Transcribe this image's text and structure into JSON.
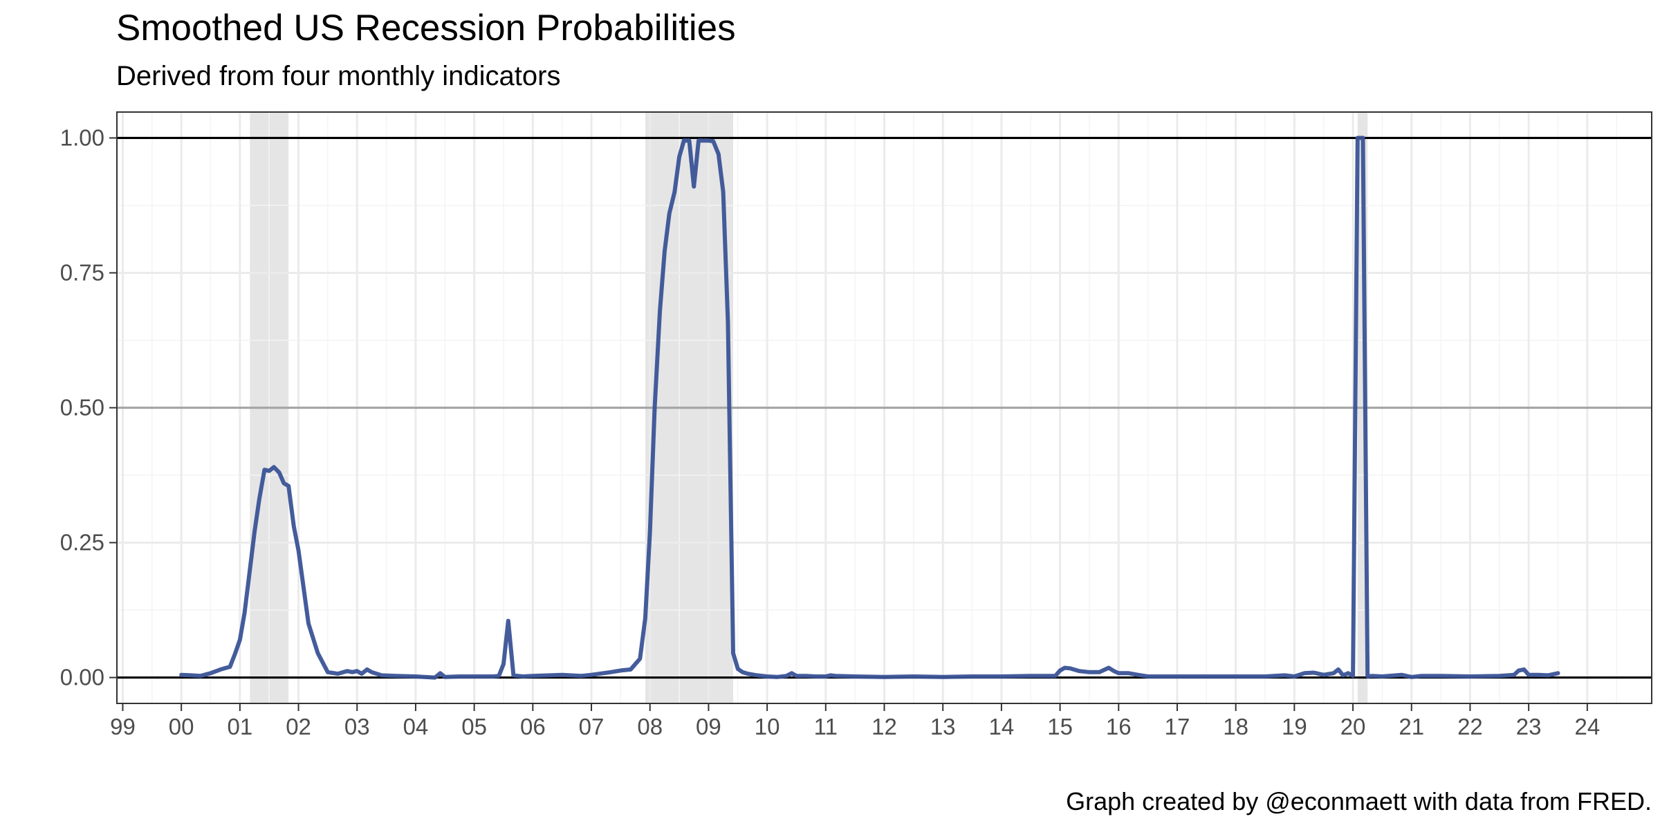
{
  "chart_data": {
    "type": "line",
    "title": "Smoothed US Recession Probabilities",
    "subtitle": "Derived from four monthly indicators",
    "caption": "Graph created by @econmaett with data from FRED.",
    "xlabel": "",
    "ylabel": "",
    "xlim": [
      1998.9,
      2025.1
    ],
    "ylim": [
      -0.048,
      1.048
    ],
    "x_ticks": [
      1999,
      2000,
      2001,
      2002,
      2003,
      2004,
      2005,
      2006,
      2007,
      2008,
      2009,
      2010,
      2011,
      2012,
      2013,
      2014,
      2015,
      2016,
      2017,
      2018,
      2019,
      2020,
      2021,
      2022,
      2023,
      2024
    ],
    "x_tick_labels": [
      "99",
      "00",
      "01",
      "02",
      "03",
      "04",
      "05",
      "06",
      "07",
      "08",
      "09",
      "10",
      "11",
      "12",
      "13",
      "14",
      "15",
      "16",
      "17",
      "18",
      "19",
      "20",
      "21",
      "22",
      "23",
      "24"
    ],
    "y_ticks": [
      0,
      0.25,
      0.5,
      0.75,
      1
    ],
    "y_tick_labels": [
      "0.00",
      "0.25",
      "0.50",
      "0.75",
      "1.00"
    ],
    "reference_lines": [
      {
        "y": 0,
        "color": "#000000"
      },
      {
        "y": 0.5,
        "color": "#a6a6a6"
      },
      {
        "y": 1,
        "color": "#000000"
      }
    ],
    "recessions": [
      {
        "start": 2001.17,
        "end": 2001.83
      },
      {
        "start": 2007.92,
        "end": 2009.42
      },
      {
        "start": 2020.08,
        "end": 2020.25
      }
    ],
    "grid": true,
    "legend": "none",
    "colors": {
      "line": "#3a5396",
      "recession_shade": "#e5e5e5",
      "panel_border": "#333333",
      "grid_major": "#ebebeb",
      "grid_minor": "#f4f4f4"
    },
    "series": [
      {
        "x": [
          2000.0,
          2000.17,
          2000.33,
          2000.5,
          2000.67,
          2000.83,
          2000.92,
          2001.0,
          2001.08,
          2001.17,
          2001.25,
          2001.33,
          2001.42,
          2001.5,
          2001.58,
          2001.67,
          2001.75,
          2001.83,
          2001.92,
          2002.0,
          2002.17,
          2002.33,
          2002.5,
          2002.67,
          2002.83,
          2002.92,
          2003.0,
          2003.08,
          2003.17,
          2003.25,
          2003.42,
          2003.67,
          2004.0,
          2004.33,
          2004.42,
          2004.5,
          2004.75,
          2005.0,
          2005.33,
          2005.42,
          2005.5,
          2005.58,
          2005.67,
          2005.75,
          2005.83,
          2006.0,
          2006.5,
          2006.83,
          2007.0,
          2007.33,
          2007.5,
          2007.67,
          2007.83,
          2007.92,
          2008.0,
          2008.08,
          2008.17,
          2008.25,
          2008.33,
          2008.42,
          2008.5,
          2008.58,
          2008.67,
          2008.75,
          2008.83,
          2008.92,
          2009.0,
          2009.08,
          2009.17,
          2009.25,
          2009.33,
          2009.42,
          2009.5,
          2009.58,
          2009.67,
          2009.83,
          2010.0,
          2010.17,
          2010.33,
          2010.42,
          2010.5,
          2010.67,
          2010.83,
          2011.0,
          2011.08,
          2011.17,
          2011.5,
          2012.0,
          2012.5,
          2013.0,
          2013.5,
          2014.0,
          2014.5,
          2014.92,
          2015.0,
          2015.08,
          2015.17,
          2015.33,
          2015.5,
          2015.67,
          2015.83,
          2015.92,
          2016.0,
          2016.17,
          2016.33,
          2016.5,
          2016.83,
          2017.0,
          2017.5,
          2018.0,
          2018.5,
          2018.83,
          2019.0,
          2019.17,
          2019.33,
          2019.5,
          2019.67,
          2019.75,
          2019.83,
          2019.92,
          2020.0,
          2020.08,
          2020.17,
          2020.25,
          2020.33,
          2020.5,
          2020.83,
          2021.0,
          2021.17,
          2021.5,
          2022.0,
          2022.5,
          2022.75,
          2022.83,
          2022.92,
          2023.0,
          2023.17,
          2023.33,
          2023.5
        ],
        "values": [
          0.005,
          0.004,
          0.003,
          0.008,
          0.015,
          0.02,
          0.045,
          0.07,
          0.12,
          0.2,
          0.27,
          0.33,
          0.385,
          0.383,
          0.39,
          0.38,
          0.36,
          0.355,
          0.28,
          0.235,
          0.1,
          0.045,
          0.01,
          0.007,
          0.012,
          0.01,
          0.012,
          0.007,
          0.015,
          0.01,
          0.004,
          0.003,
          0.002,
          0.0,
          0.008,
          0.001,
          0.002,
          0.002,
          0.002,
          0.003,
          0.025,
          0.105,
          0.004,
          0.003,
          0.002,
          0.003,
          0.005,
          0.003,
          0.005,
          0.01,
          0.013,
          0.015,
          0.035,
          0.11,
          0.27,
          0.5,
          0.68,
          0.79,
          0.86,
          0.9,
          0.965,
          0.995,
          0.995,
          0.91,
          0.995,
          0.995,
          0.995,
          0.994,
          0.97,
          0.9,
          0.66,
          0.045,
          0.016,
          0.01,
          0.007,
          0.004,
          0.002,
          0.001,
          0.003,
          0.008,
          0.003,
          0.003,
          0.002,
          0.002,
          0.004,
          0.003,
          0.002,
          0.001,
          0.002,
          0.001,
          0.002,
          0.002,
          0.003,
          0.003,
          0.013,
          0.018,
          0.017,
          0.012,
          0.01,
          0.01,
          0.018,
          0.012,
          0.008,
          0.008,
          0.005,
          0.002,
          0.002,
          0.002,
          0.002,
          0.002,
          0.002,
          0.004,
          0.002,
          0.008,
          0.009,
          0.005,
          0.008,
          0.015,
          0.004,
          0.008,
          0.003,
          1.0,
          1.0,
          0.002,
          0.003,
          0.002,
          0.005,
          0.001,
          0.003,
          0.003,
          0.002,
          0.003,
          0.005,
          0.013,
          0.015,
          0.005,
          0.005,
          0.004,
          0.008
        ]
      }
    ]
  }
}
